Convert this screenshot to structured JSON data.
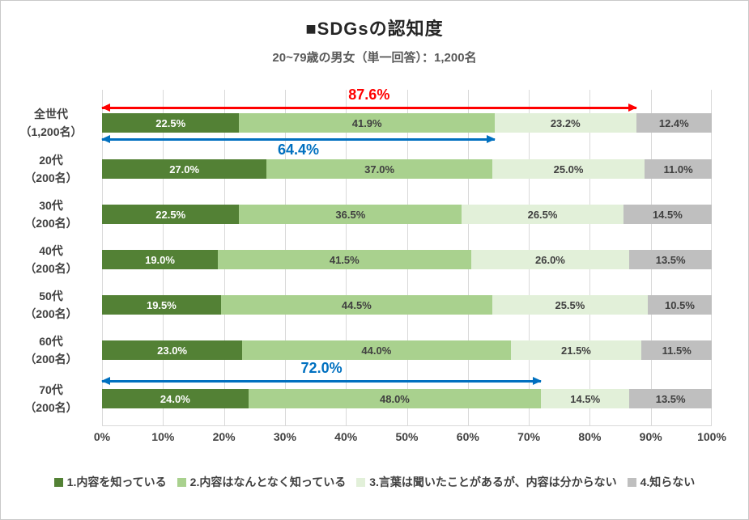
{
  "title": "■SDGsの認知度",
  "subtitle": "20~79歳の男女（単一回答）：1,200名",
  "chart_data": {
    "type": "bar",
    "variant": "horizontal-stacked",
    "title": "■SDGsの認知度",
    "subtitle": "20~79歳の男女（単一回答）：1,200名",
    "x_axis": {
      "min": 0,
      "max": 100,
      "grid": true,
      "ticks": [
        "0%",
        "10%",
        "20%",
        "30%",
        "40%",
        "50%",
        "60%",
        "70%",
        "80%",
        "90%",
        "100%"
      ]
    },
    "categories": [
      [
        "全世代",
        "（1,200名）"
      ],
      [
        "20代",
        "（200名）"
      ],
      [
        "30代",
        "（200名）"
      ],
      [
        "40代",
        "（200名）"
      ],
      [
        "50代",
        "（200名）"
      ],
      [
        "60代",
        "（200名）"
      ],
      [
        "70代",
        "（200名）"
      ]
    ],
    "series": [
      {
        "name": "1.内容を知っている",
        "color": "#538135",
        "label_color": "#ffffff",
        "values": [
          22.5,
          27.0,
          22.5,
          19.0,
          19.5,
          23.0,
          24.0
        ]
      },
      {
        "name": "2.内容はなんとなく知っている",
        "color": "#a9d18e",
        "label_color": "#404040",
        "values": [
          41.9,
          37.0,
          36.5,
          41.5,
          44.5,
          44.0,
          48.0
        ]
      },
      {
        "name": "3.言葉は聞いたことがあるが、内容は分からない",
        "color": "#e2f0d9",
        "label_color": "#404040",
        "values": [
          23.2,
          25.0,
          26.5,
          26.0,
          25.5,
          21.5,
          14.5
        ]
      },
      {
        "name": "4.知らない",
        "color": "#bfbfbf",
        "label_color": "#404040",
        "values": [
          12.4,
          11.0,
          14.5,
          13.5,
          10.5,
          11.5,
          13.5
        ]
      }
    ],
    "annotations": [
      {
        "label": "87.6%",
        "span_percent": 87.6,
        "color": "#ff0000",
        "attached_row": 0,
        "label_position": "above"
      },
      {
        "label": "64.4%",
        "span_percent": 64.4,
        "color": "#0070c0",
        "attached_row": 0,
        "label_position": "below"
      },
      {
        "label": "72.0%",
        "span_percent": 72.0,
        "color": "#0070c0",
        "attached_row": 6,
        "label_position": "above"
      }
    ],
    "legend_position": "bottom"
  }
}
